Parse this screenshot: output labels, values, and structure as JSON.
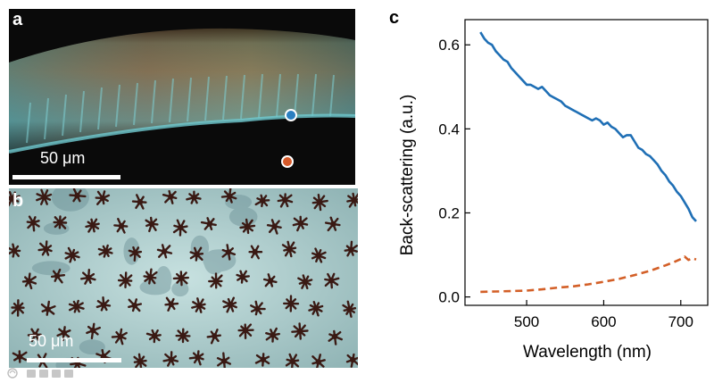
{
  "figure": {
    "panel_a": {
      "letter": "a",
      "scale_label": "50 μm",
      "marker_colors": {
        "upper": "#2a7fc1",
        "lower": "#d65a2a"
      }
    },
    "panel_b": {
      "letter": "b",
      "scale_label": "50 μm"
    },
    "panel_c": {
      "letter": "c"
    }
  },
  "colors": {
    "series_solid": "#1f6fb5",
    "series_dashed": "#d35f27",
    "axis": "#000000"
  },
  "watermark": {
    "glyph_icon": "swirl-logo-icon",
    "text_image": "chinese-watermark-logo"
  },
  "chart_data": {
    "type": "line",
    "title": "",
    "xlabel": "Wavelength (nm)",
    "ylabel": "Back-scattering (a.u.)",
    "xlim": [
      420,
      735
    ],
    "ylim": [
      -0.02,
      0.66
    ],
    "x_ticks": [
      500,
      600,
      700
    ],
    "x_tick_labels": [
      "500",
      "600",
      "700"
    ],
    "y_ticks": [
      0.0,
      0.2,
      0.4,
      0.6
    ],
    "y_tick_labels": [
      "0.0",
      "0.2",
      "0.4",
      "0.6"
    ],
    "grid": false,
    "legend": "none",
    "series": [
      {
        "style": "solid",
        "color": "#1f6fb5",
        "x": [
          440,
          445,
          450,
          455,
          460,
          465,
          470,
          475,
          480,
          485,
          490,
          495,
          500,
          505,
          510,
          515,
          520,
          525,
          530,
          535,
          540,
          545,
          550,
          555,
          560,
          565,
          570,
          575,
          580,
          585,
          590,
          595,
          600,
          605,
          610,
          615,
          620,
          625,
          630,
          635,
          640,
          645,
          650,
          655,
          660,
          665,
          670,
          675,
          680,
          685,
          690,
          695,
          700,
          705,
          710,
          715,
          720
        ],
        "y": [
          0.63,
          0.615,
          0.605,
          0.6,
          0.585,
          0.575,
          0.565,
          0.56,
          0.545,
          0.535,
          0.525,
          0.515,
          0.505,
          0.505,
          0.5,
          0.495,
          0.5,
          0.49,
          0.48,
          0.475,
          0.47,
          0.465,
          0.455,
          0.45,
          0.445,
          0.44,
          0.435,
          0.43,
          0.425,
          0.42,
          0.425,
          0.42,
          0.41,
          0.415,
          0.405,
          0.4,
          0.39,
          0.38,
          0.385,
          0.385,
          0.37,
          0.355,
          0.35,
          0.34,
          0.335,
          0.325,
          0.315,
          0.3,
          0.29,
          0.275,
          0.265,
          0.25,
          0.24,
          0.225,
          0.21,
          0.19,
          0.18
        ]
      },
      {
        "style": "dashed",
        "color": "#d35f27",
        "x": [
          440,
          460,
          480,
          500,
          520,
          540,
          560,
          580,
          600,
          620,
          640,
          660,
          680,
          690,
          700,
          705,
          710,
          715,
          720
        ],
        "y": [
          0.012,
          0.013,
          0.014,
          0.015,
          0.018,
          0.022,
          0.025,
          0.03,
          0.036,
          0.043,
          0.052,
          0.062,
          0.075,
          0.082,
          0.09,
          0.096,
          0.088,
          0.092,
          0.089
        ]
      }
    ]
  }
}
